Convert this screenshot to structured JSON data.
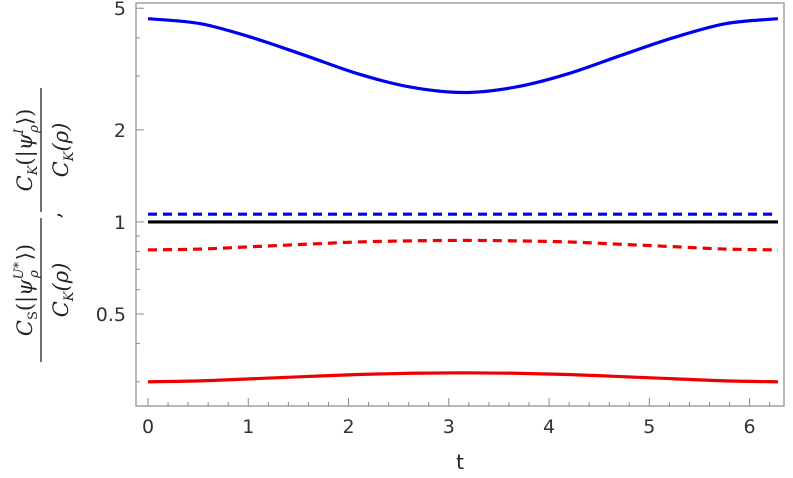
{
  "chart_data": {
    "type": "line",
    "title": "",
    "xlabel": "t",
    "ylabel_parts": {
      "frac1_numerator": {
        "C": "C",
        "sub": "K",
        "open": "(|",
        "psi": "ψ",
        "psi_sub": "ρ",
        "psi_sup": "I",
        "close": "⟩)"
      },
      "frac1_denominator": {
        "C": "C",
        "sub": "K",
        "arg": "(ρ)"
      },
      "separator": ",",
      "frac2_numerator": {
        "C": "C",
        "sub": "S",
        "open": "(|",
        "psi": "ψ",
        "psi_sub": "ρ",
        "psi_sup": "U*",
        "close": "⟩)"
      },
      "frac2_denominator": {
        "C": "C",
        "sub": "K",
        "arg": "(ρ)"
      }
    },
    "xlim": [
      0,
      6.2832
    ],
    "ylim": [
      0.25,
      5.2
    ],
    "yscale": "log",
    "x_ticks": [
      0,
      1,
      2,
      3,
      4,
      5,
      6
    ],
    "y_ticks": [
      0.5,
      1,
      2,
      5
    ],
    "x_tick_labels": [
      "0",
      "1",
      "2",
      "3",
      "4",
      "5",
      "6"
    ],
    "y_tick_labels": [
      "0.5",
      "1",
      "2",
      "5"
    ],
    "grid": false,
    "x": [
      0,
      0.5236,
      1.0472,
      1.5708,
      2.0944,
      2.618,
      3.1416,
      3.6652,
      4.1888,
      4.7124,
      5.236,
      5.7596,
      6.2832
    ],
    "series": [
      {
        "style": "solid",
        "color": "#0000ee",
        "values": [
          4.62,
          4.45,
          4.0,
          3.5,
          3.05,
          2.76,
          2.65,
          2.76,
          3.05,
          3.5,
          4.0,
          4.45,
          4.62
        ]
      },
      {
        "style": "dashed",
        "color": "#0000ee",
        "values": [
          1.06,
          1.06,
          1.06,
          1.06,
          1.06,
          1.06,
          1.06,
          1.06,
          1.06,
          1.06,
          1.06,
          1.06,
          1.06
        ]
      },
      {
        "style": "solid",
        "color": "#000000",
        "values": [
          1.0,
          1.0,
          1.0,
          1.0,
          1.0,
          1.0,
          1.0,
          1.0,
          1.0,
          1.0,
          1.0,
          1.0,
          1.0
        ]
      },
      {
        "style": "dashed",
        "color": "#ee0000",
        "values": [
          0.81,
          0.815,
          0.83,
          0.845,
          0.86,
          0.867,
          0.87,
          0.867,
          0.86,
          0.845,
          0.83,
          0.815,
          0.81
        ]
      },
      {
        "style": "solid",
        "color": "#ee0000",
        "values": [
          0.3,
          0.302,
          0.307,
          0.312,
          0.317,
          0.32,
          0.321,
          0.32,
          0.317,
          0.312,
          0.307,
          0.302,
          0.3
        ]
      }
    ]
  }
}
